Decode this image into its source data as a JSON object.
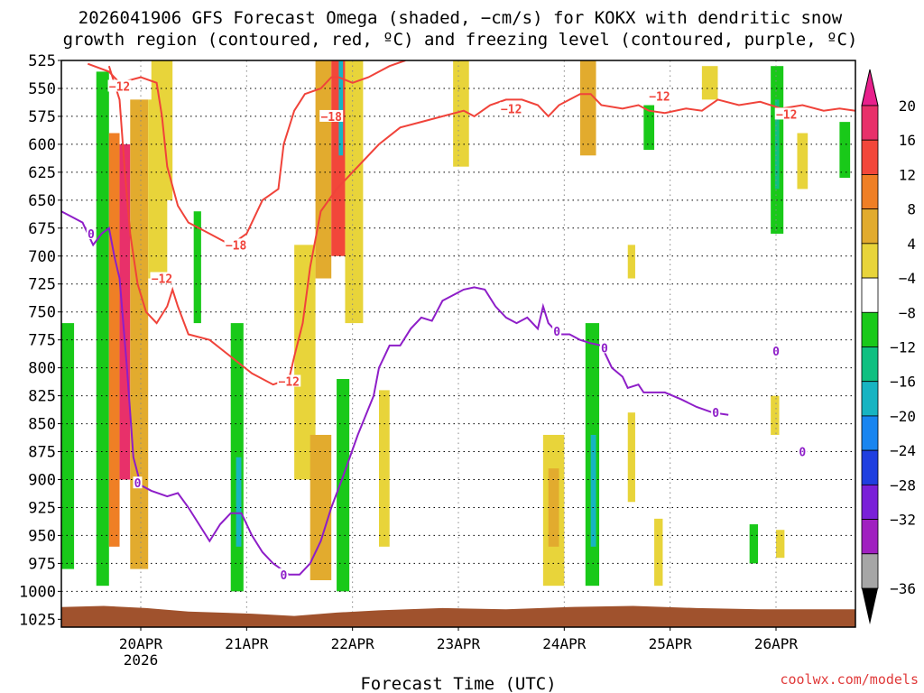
{
  "chart_data": {
    "type": "heatmap",
    "title_line1": "2026041906 GFS Forecast Omega (shaded, −cm/s) for KOKX with dendritic snow",
    "title_line2": "growth region (contoured, red, ºC) and freezing level (contoured, purple, ºC)",
    "xlabel": "Forecast Time (UTC)",
    "credit": "coolwx.com/models",
    "x_ticks": [
      {
        "t": 0.75,
        "label": "20APR",
        "sub": "2026"
      },
      {
        "t": 1.75,
        "label": "21APR"
      },
      {
        "t": 2.75,
        "label": "22APR"
      },
      {
        "t": 3.75,
        "label": "23APR"
      },
      {
        "t": 4.75,
        "label": "24APR"
      },
      {
        "t": 5.75,
        "label": "25APR"
      },
      {
        "t": 6.75,
        "label": "26APR"
      }
    ],
    "xlim": [
      0,
      7.5
    ],
    "ylim": [
      1032,
      525
    ],
    "y_ticks": [
      "525",
      "550",
      "575",
      "600",
      "625",
      "650",
      "675",
      "700",
      "725",
      "750",
      "775",
      "800",
      "825",
      "850",
      "875",
      "900",
      "925",
      "950",
      "975",
      "1000",
      "1025"
    ],
    "colorbar": {
      "labels": [
        "20",
        "16",
        "12",
        "8",
        "4",
        "−4",
        "−8",
        "−12",
        "−16",
        "−20",
        "−24",
        "−28",
        "−32",
        "−36"
      ],
      "colors": [
        "#e8306a",
        "#f2473a",
        "#ef7f25",
        "#e2ab2e",
        "#e8d43a",
        "#ffffff",
        "#19c919",
        "#10c081",
        "#17b4c2",
        "#1885f0",
        "#1f3fe0",
        "#7a20d8",
        "#a020c0",
        "#a6a6a6"
      ],
      "top_arrow": "#e8208c",
      "bottom_arrow": "#000000"
    },
    "omega_cells": [
      {
        "t0": 0.33,
        "t1": 0.45,
        "p0": 535,
        "p1": 995,
        "c": "#19c919"
      },
      {
        "t0": 0.0,
        "t1": 0.12,
        "p0": 760,
        "p1": 980,
        "c": "#19c919"
      },
      {
        "t0": 0.45,
        "t1": 0.55,
        "p0": 590,
        "p1": 960,
        "c": "#ef7f25"
      },
      {
        "t0": 0.55,
        "t1": 0.65,
        "p0": 600,
        "p1": 900,
        "c": "#e8306a"
      },
      {
        "t0": 0.65,
        "t1": 0.82,
        "p0": 560,
        "p1": 980,
        "c": "#e2ab2e"
      },
      {
        "t0": 0.82,
        "t1": 1.0,
        "p0": 560,
        "p1": 720,
        "c": "#e8d43a"
      },
      {
        "t0": 0.85,
        "t1": 1.05,
        "p0": 525,
        "p1": 650,
        "c": "#e8d43a"
      },
      {
        "t0": 1.25,
        "t1": 1.32,
        "p0": 660,
        "p1": 760,
        "c": "#19c919"
      },
      {
        "t0": 1.6,
        "t1": 1.72,
        "p0": 760,
        "p1": 1000,
        "c": "#19c919"
      },
      {
        "t0": 1.65,
        "t1": 1.7,
        "p0": 880,
        "p1": 960,
        "c": "#17b4c2"
      },
      {
        "t0": 2.2,
        "t1": 2.4,
        "p0": 690,
        "p1": 900,
        "c": "#e8d43a"
      },
      {
        "t0": 2.4,
        "t1": 2.55,
        "p0": 525,
        "p1": 720,
        "c": "#e2ab2e"
      },
      {
        "t0": 2.55,
        "t1": 2.68,
        "p0": 525,
        "p1": 700,
        "c": "#f2473a"
      },
      {
        "t0": 2.62,
        "t1": 2.66,
        "p0": 525,
        "p1": 610,
        "c": "#17b4c2"
      },
      {
        "t0": 2.68,
        "t1": 2.85,
        "p0": 525,
        "p1": 760,
        "c": "#e8d43a"
      },
      {
        "t0": 2.35,
        "t1": 2.55,
        "p0": 860,
        "p1": 990,
        "c": "#e2ab2e"
      },
      {
        "t0": 2.6,
        "t1": 2.72,
        "p0": 810,
        "p1": 1000,
        "c": "#19c919"
      },
      {
        "t0": 3.0,
        "t1": 3.1,
        "p0": 820,
        "p1": 960,
        "c": "#e8d43a"
      },
      {
        "t0": 3.7,
        "t1": 3.85,
        "p0": 525,
        "p1": 620,
        "c": "#e8d43a"
      },
      {
        "t0": 4.55,
        "t1": 4.75,
        "p0": 860,
        "p1": 995,
        "c": "#e8d43a"
      },
      {
        "t0": 4.6,
        "t1": 4.7,
        "p0": 890,
        "p1": 960,
        "c": "#e2ab2e"
      },
      {
        "t0": 4.9,
        "t1": 5.05,
        "p0": 525,
        "p1": 610,
        "c": "#e2ab2e"
      },
      {
        "t0": 4.95,
        "t1": 5.08,
        "p0": 760,
        "p1": 995,
        "c": "#19c919"
      },
      {
        "t0": 5.0,
        "t1": 5.05,
        "p0": 860,
        "p1": 960,
        "c": "#17b4c2"
      },
      {
        "t0": 5.35,
        "t1": 5.42,
        "p0": 690,
        "p1": 720,
        "c": "#e8d43a"
      },
      {
        "t0": 5.35,
        "t1": 5.42,
        "p0": 840,
        "p1": 920,
        "c": "#e8d43a"
      },
      {
        "t0": 5.5,
        "t1": 5.6,
        "p0": 565,
        "p1": 605,
        "c": "#19c919"
      },
      {
        "t0": 5.6,
        "t1": 5.68,
        "p0": 935,
        "p1": 995,
        "c": "#e8d43a"
      },
      {
        "t0": 6.05,
        "t1": 6.2,
        "p0": 530,
        "p1": 560,
        "c": "#e8d43a"
      },
      {
        "t0": 6.5,
        "t1": 6.58,
        "p0": 940,
        "p1": 975,
        "c": "#19c919"
      },
      {
        "t0": 6.7,
        "t1": 6.82,
        "p0": 530,
        "p1": 680,
        "c": "#19c919"
      },
      {
        "t0": 6.74,
        "t1": 6.78,
        "p0": 560,
        "p1": 640,
        "c": "#10c081"
      },
      {
        "t0": 6.7,
        "t1": 6.78,
        "p0": 825,
        "p1": 860,
        "c": "#e8d43a"
      },
      {
        "t0": 6.75,
        "t1": 6.83,
        "p0": 945,
        "p1": 970,
        "c": "#e8d43a"
      },
      {
        "t0": 6.95,
        "t1": 7.05,
        "p0": 590,
        "p1": 640,
        "c": "#e8d43a"
      },
      {
        "t0": 7.35,
        "t1": 7.45,
        "p0": 580,
        "p1": 630,
        "c": "#19c919"
      }
    ],
    "series": [
      {
        "name": "-12C dendritic growth upper",
        "color": "#f0433a",
        "points": [
          [
            0.25,
            528
          ],
          [
            0.45,
            535
          ],
          [
            0.55,
            545
          ],
          [
            0.75,
            540
          ],
          [
            0.9,
            545
          ],
          [
            0.95,
            575
          ],
          [
            1.0,
            620
          ],
          [
            1.1,
            655
          ],
          [
            1.2,
            670
          ],
          [
            1.4,
            680
          ],
          [
            1.5,
            685
          ],
          [
            1.6,
            690
          ],
          [
            1.75,
            680
          ],
          [
            1.9,
            650
          ],
          [
            2.05,
            640
          ],
          [
            2.1,
            600
          ],
          [
            2.2,
            570
          ],
          [
            2.3,
            555
          ],
          [
            2.45,
            550
          ],
          [
            2.55,
            540
          ],
          [
            2.62,
            540
          ],
          [
            2.75,
            545
          ],
          [
            2.9,
            540
          ],
          [
            3.1,
            530
          ],
          [
            3.25,
            525
          ]
        ]
      },
      {
        "name": "-12C dendritic growth lower",
        "color": "#f0433a",
        "points": [
          [
            0.45,
            530
          ],
          [
            0.55,
            560
          ],
          [
            0.6,
            625
          ],
          [
            0.65,
            680
          ],
          [
            0.72,
            725
          ],
          [
            0.8,
            750
          ],
          [
            0.9,
            760
          ],
          [
            1.0,
            745
          ],
          [
            1.05,
            730
          ],
          [
            1.1,
            745
          ],
          [
            1.2,
            770
          ],
          [
            1.4,
            775
          ],
          [
            1.6,
            790
          ],
          [
            1.8,
            805
          ],
          [
            2.0,
            815
          ],
          [
            2.15,
            810
          ],
          [
            2.2,
            790
          ],
          [
            2.28,
            760
          ],
          [
            2.35,
            710
          ],
          [
            2.45,
            660
          ],
          [
            2.6,
            640
          ],
          [
            2.8,
            620
          ],
          [
            3.0,
            600
          ],
          [
            3.2,
            585
          ],
          [
            3.4,
            580
          ],
          [
            3.6,
            575
          ],
          [
            3.8,
            570
          ],
          [
            3.9,
            575
          ],
          [
            4.05,
            565
          ],
          [
            4.2,
            560
          ],
          [
            4.35,
            560
          ],
          [
            4.5,
            565
          ],
          [
            4.6,
            575
          ],
          [
            4.7,
            565
          ],
          [
            4.8,
            560
          ],
          [
            4.9,
            555
          ],
          [
            5.0,
            555
          ],
          [
            5.1,
            565
          ],
          [
            5.3,
            568
          ],
          [
            5.45,
            565
          ],
          [
            5.55,
            570
          ],
          [
            5.7,
            572
          ],
          [
            5.9,
            568
          ],
          [
            6.05,
            570
          ],
          [
            6.2,
            560
          ],
          [
            6.4,
            565
          ],
          [
            6.6,
            562
          ],
          [
            6.8,
            568
          ],
          [
            7.0,
            565
          ],
          [
            7.2,
            570
          ],
          [
            7.35,
            568
          ],
          [
            7.5,
            570
          ]
        ]
      },
      {
        "name": "0C freezing level",
        "color": "#8e1ec8",
        "points": [
          [
            0.0,
            660
          ],
          [
            0.1,
            665
          ],
          [
            0.2,
            670
          ],
          [
            0.25,
            680
          ],
          [
            0.3,
            690
          ],
          [
            0.38,
            680
          ],
          [
            0.45,
            675
          ],
          [
            0.5,
            700
          ],
          [
            0.55,
            720
          ],
          [
            0.62,
            800
          ],
          [
            0.68,
            880
          ],
          [
            0.75,
            905
          ],
          [
            0.85,
            910
          ],
          [
            1.0,
            915
          ],
          [
            1.1,
            912
          ],
          [
            1.2,
            925
          ],
          [
            1.3,
            940
          ],
          [
            1.4,
            955
          ],
          [
            1.5,
            940
          ],
          [
            1.6,
            930
          ],
          [
            1.7,
            930
          ],
          [
            1.8,
            950
          ],
          [
            1.9,
            965
          ],
          [
            2.0,
            975
          ],
          [
            2.15,
            985
          ],
          [
            2.25,
            985
          ],
          [
            2.35,
            975
          ],
          [
            2.45,
            955
          ],
          [
            2.55,
            925
          ],
          [
            2.65,
            900
          ],
          [
            2.8,
            860
          ],
          [
            2.95,
            825
          ],
          [
            3.0,
            800
          ],
          [
            3.05,
            790
          ],
          [
            3.1,
            780
          ],
          [
            3.2,
            780
          ],
          [
            3.3,
            765
          ],
          [
            3.4,
            755
          ],
          [
            3.5,
            758
          ],
          [
            3.6,
            740
          ],
          [
            3.7,
            735
          ],
          [
            3.8,
            730
          ],
          [
            3.9,
            728
          ],
          [
            4.0,
            730
          ],
          [
            4.1,
            745
          ],
          [
            4.2,
            755
          ],
          [
            4.3,
            760
          ],
          [
            4.4,
            755
          ],
          [
            4.5,
            765
          ],
          [
            4.55,
            745
          ],
          [
            4.6,
            760
          ],
          [
            4.65,
            765
          ],
          [
            4.7,
            770
          ],
          [
            4.8,
            770
          ],
          [
            4.9,
            775
          ],
          [
            5.0,
            778
          ],
          [
            5.1,
            780
          ],
          [
            5.2,
            800
          ],
          [
            5.3,
            808
          ],
          [
            5.35,
            818
          ],
          [
            5.45,
            815
          ],
          [
            5.5,
            822
          ],
          [
            5.7,
            822
          ],
          [
            5.85,
            828
          ],
          [
            6.0,
            835
          ],
          [
            6.15,
            840
          ],
          [
            6.3,
            842
          ]
        ]
      }
    ],
    "contour_labels": [
      {
        "t": 0.55,
        "p": 548,
        "text": "−12",
        "color": "#f0433a"
      },
      {
        "t": 2.55,
        "p": 575,
        "text": "−18",
        "color": "#f0433a"
      },
      {
        "t": 1.65,
        "p": 690,
        "text": "−18",
        "color": "#f0433a"
      },
      {
        "t": 0.95,
        "p": 720,
        "text": "−12",
        "color": "#f0433a"
      },
      {
        "t": 2.15,
        "p": 812,
        "text": "−12",
        "color": "#f0433a"
      },
      {
        "t": 4.25,
        "p": 568,
        "text": "−12",
        "color": "#f0433a"
      },
      {
        "t": 5.65,
        "p": 557,
        "text": "−12",
        "color": "#f0433a"
      },
      {
        "t": 6.85,
        "p": 573,
        "text": "−12",
        "color": "#f0433a"
      },
      {
        "t": 0.28,
        "p": 680,
        "text": "0",
        "color": "#8e1ec8"
      },
      {
        "t": 0.72,
        "p": 903,
        "text": "0",
        "color": "#8e1ec8"
      },
      {
        "t": 2.1,
        "p": 985,
        "text": "0",
        "color": "#8e1ec8"
      },
      {
        "t": 4.68,
        "p": 767,
        "text": "0",
        "color": "#8e1ec8"
      },
      {
        "t": 5.13,
        "p": 782,
        "text": "0",
        "color": "#8e1ec8"
      },
      {
        "t": 6.18,
        "p": 840,
        "text": "0",
        "color": "#8e1ec8"
      },
      {
        "t": 6.75,
        "p": 785,
        "text": "0",
        "color": "#8e1ec8"
      },
      {
        "t": 7.0,
        "p": 875,
        "text": "0",
        "color": "#8e1ec8"
      }
    ],
    "terrain_color": "#a0522d"
  }
}
